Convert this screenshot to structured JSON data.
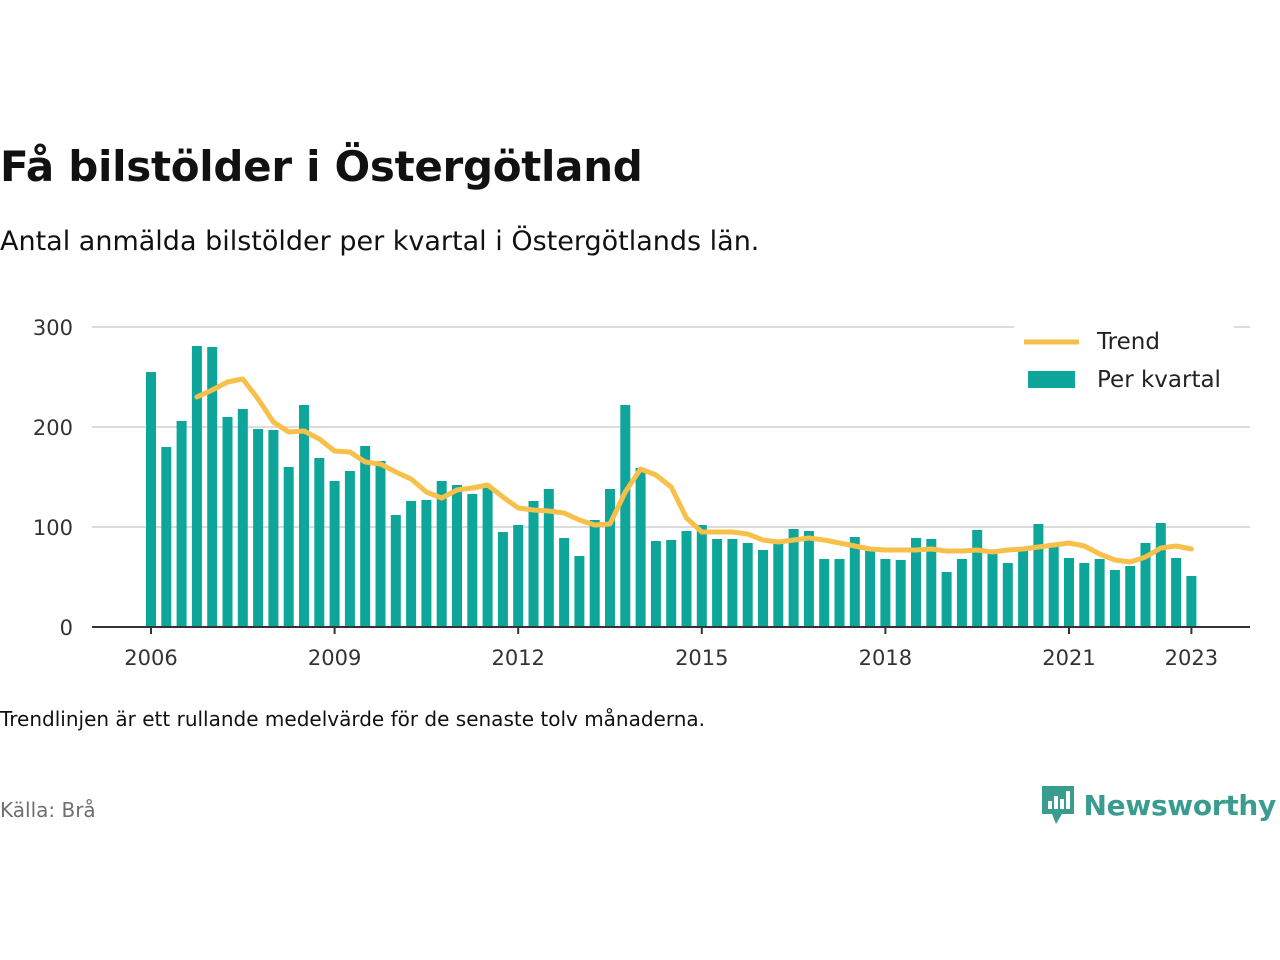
{
  "title": "Få bilstölder i Östergötland",
  "subtitle": "Antal anmälda bilstölder per kvartal i Östergötlands län.",
  "note": "Trendlinjen är ett rullande medelvärde för de senaste tolv månaderna.",
  "source": "Källa: Brå",
  "brand": {
    "name": "Newsworthy",
    "icon": "newsworthy-logo-icon",
    "color": "#3a9c8e"
  },
  "colors": {
    "bar": "#0ea59b",
    "trend": "#f7c04a",
    "grid": "#dcdcdc",
    "axis": "#333333"
  },
  "chart_data": {
    "type": "bar",
    "x_unit": "quarter",
    "x_start": "2006 Q1",
    "x_ticks": [
      "2006",
      "2009",
      "2012",
      "2015",
      "2018",
      "2021",
      "2023"
    ],
    "y_ticks": [
      0,
      100,
      200,
      300
    ],
    "ylim": [
      0,
      300
    ],
    "grid": true,
    "legend_position": "top-right",
    "series": [
      {
        "name": "Per kvartal",
        "kind": "bar",
        "values": [
          255,
          180,
          206,
          281,
          280,
          210,
          218,
          198,
          197,
          160,
          222,
          169,
          146,
          156,
          181,
          166,
          112,
          126,
          127,
          146,
          142,
          133,
          141,
          95,
          102,
          126,
          138,
          89,
          71,
          107,
          138,
          222,
          159,
          86,
          87,
          96,
          102,
          88,
          88,
          84,
          77,
          87,
          98,
          96,
          68,
          68,
          90,
          76,
          68,
          67,
          89,
          88,
          55,
          68,
          97,
          73,
          64,
          77,
          103,
          82,
          69,
          64,
          68,
          57,
          61,
          84,
          104,
          69,
          51
        ]
      },
      {
        "name": "Trend",
        "kind": "line",
        "start_index": 3,
        "values": [
          230,
          237,
          245,
          248,
          228,
          205,
          195,
          196,
          188,
          176,
          175,
          165,
          163,
          155,
          148,
          135,
          129,
          137,
          139,
          142,
          130,
          119,
          117,
          116,
          114,
          107,
          102,
          103,
          135,
          158,
          152,
          140,
          109,
          95,
          95,
          95,
          93,
          87,
          85,
          87,
          89,
          87,
          84,
          81,
          78,
          77,
          77,
          77,
          78,
          76,
          76,
          77,
          75,
          77,
          78,
          80,
          82,
          84,
          81,
          73,
          67,
          65,
          70,
          79,
          81,
          78
        ]
      }
    ]
  }
}
